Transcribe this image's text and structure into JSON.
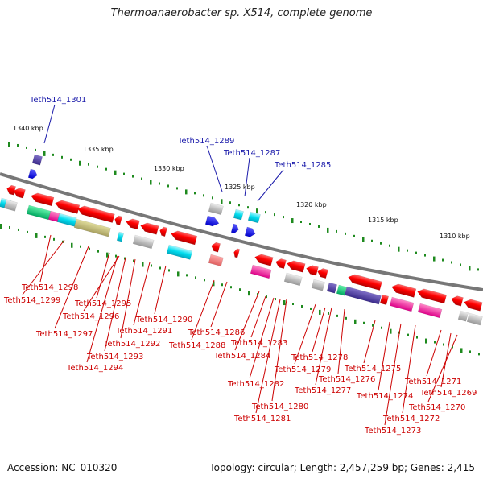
{
  "title": "Thermoanaerobacter sp. X514, complete genome",
  "footer": {
    "accession": "Accession: NC_010320",
    "summary": "Topology: circular; Length: 2,457,259 bp; Genes: 2,415"
  },
  "scale_labels": [
    "1340 kbp",
    "1335 kbp",
    "1330 kbp",
    "1325 kbp",
    "1320 kbp",
    "1315 kbp",
    "1310 kbp"
  ],
  "upper_genes": [
    "Teth514_1301",
    "Teth514_1289",
    "Teth514_1287",
    "Teth514_1285"
  ],
  "lower_genes": [
    "Teth514_1298",
    "Teth514_1299",
    "Teth514_1295",
    "Teth514_1296",
    "Teth514_1297",
    "Teth514_1290",
    "Teth514_1291",
    "Teth514_1292",
    "Teth514_1293",
    "Teth514_1294",
    "Teth514_1286",
    "Teth514_1288",
    "Teth514_1283",
    "Teth514_1284",
    "Teth514_1282",
    "Teth514_1280",
    "Teth514_1281",
    "Teth514_1278",
    "Teth514_1279",
    "Teth514_1277",
    "Teth514_1276",
    "Teth514_1275",
    "Teth514_1274",
    "Teth514_1271",
    "Teth514_1269",
    "Teth514_1270",
    "Teth514_1272",
    "Teth514_1273"
  ],
  "colors": {
    "reverse_strand": "#ee0000",
    "forward_strand": "#1010ee",
    "backbone": "#777777",
    "tick": "#1e8a1e",
    "upper_label": "#1a1aaa",
    "lower_label": "#cc0000"
  }
}
